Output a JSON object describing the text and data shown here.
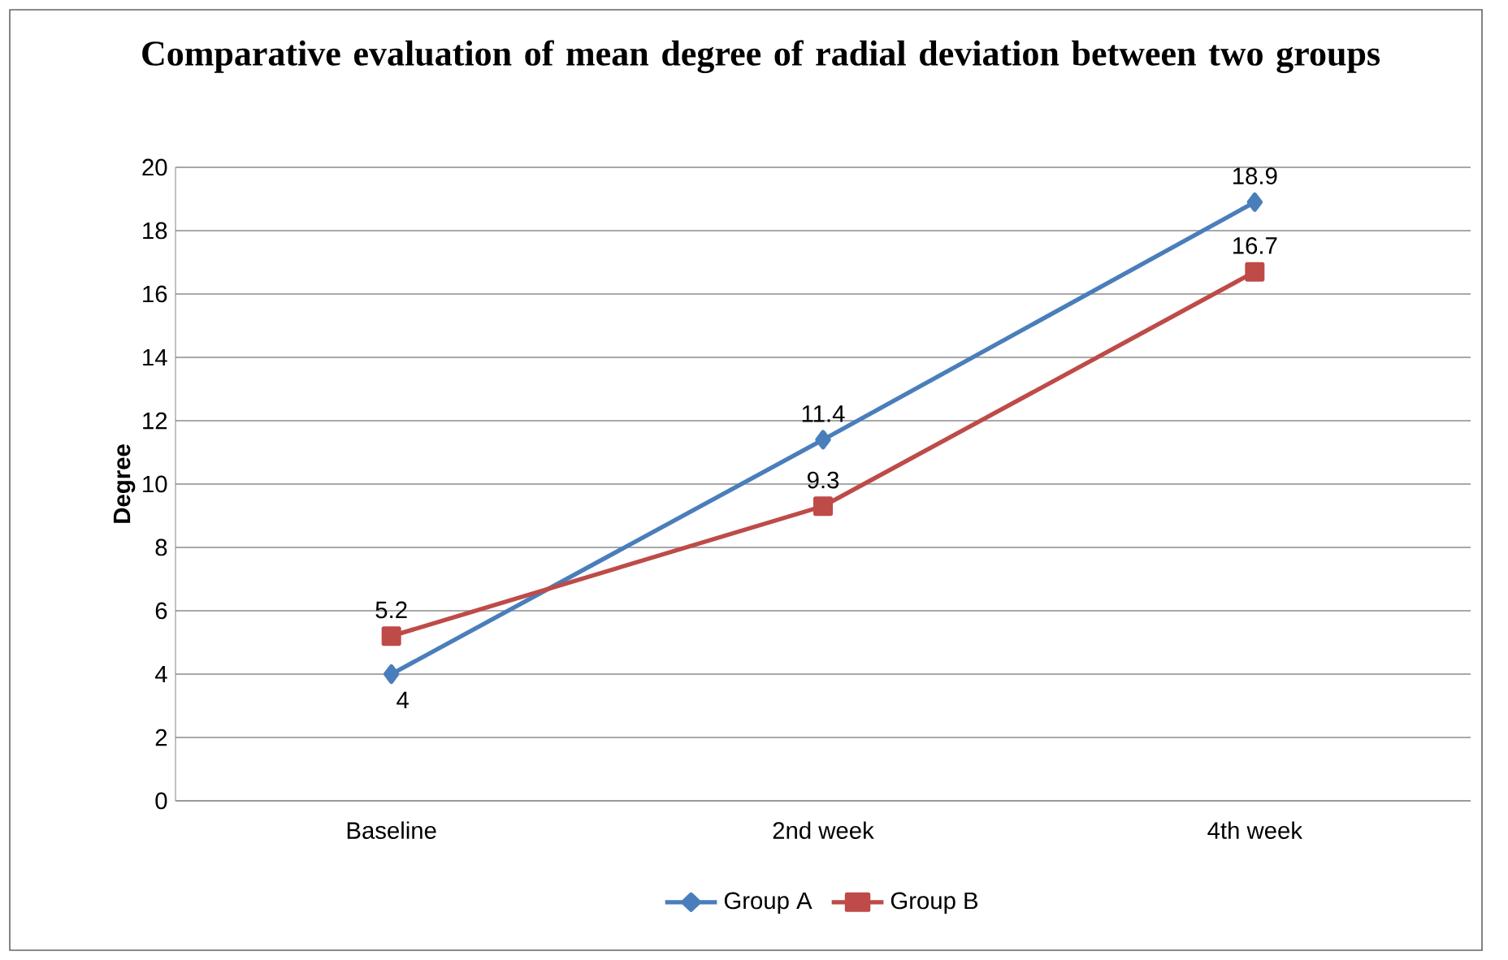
{
  "chart_data": {
    "type": "line",
    "title": "Comparative evaluation of mean degree of radial deviation between two groups",
    "ylabel": "Degree",
    "categories": [
      "Baseline",
      "2nd week",
      "4th week"
    ],
    "series": [
      {
        "name": "Group A",
        "color": "#4a7ebb",
        "marker": "diamond",
        "values": [
          4,
          11.4,
          18.9
        ]
      },
      {
        "name": "Group B",
        "color": "#be4b48",
        "marker": "square",
        "values": [
          5.2,
          9.3,
          16.7
        ]
      }
    ],
    "ylim": [
      0,
      20
    ],
    "yticks": [
      0,
      2,
      4,
      6,
      8,
      10,
      12,
      14,
      16,
      18,
      20
    ],
    "grid": "y",
    "legend": "bottom",
    "data_labels": true,
    "line_style": "solid"
  }
}
